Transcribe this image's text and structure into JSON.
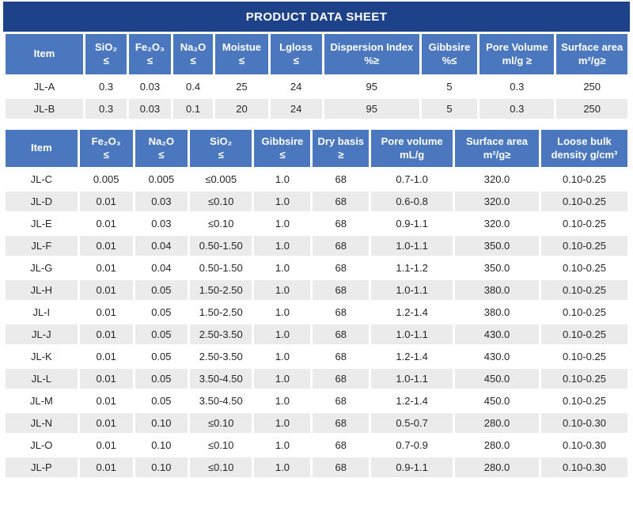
{
  "page_title": "PRODUCT DATA SHEET",
  "colors": {
    "title_bar_bg": "#1E4289",
    "header_bg": "#4B77BE",
    "header_text": "#FFFFFF",
    "row_bg": "#FFFFFF",
    "row_alt_bg": "#EBEBEB",
    "body_text": "#262626",
    "page_bg": "#FFFFFF"
  },
  "tables": [
    {
      "id": "spec-table-1",
      "headers": [
        [
          "Item",
          ""
        ],
        [
          "SiO₂",
          "≤"
        ],
        [
          "Fe₂O₃",
          "≤"
        ],
        [
          "Na₂O",
          "≤"
        ],
        [
          "Moistue",
          "≤"
        ],
        [
          "Lgloss",
          "≤"
        ],
        [
          "Dispersion Index",
          "%≥"
        ],
        [
          "Gibbsire",
          "%≤"
        ],
        [
          "Pore Volume",
          "ml/g ≥"
        ],
        [
          "Surface area",
          "m²/g≥"
        ]
      ],
      "rows": [
        [
          "JL-A",
          "0.3",
          "0.03",
          "0.4",
          "25",
          "24",
          "95",
          "5",
          "0.3",
          "250"
        ],
        [
          "JL-B",
          "0.3",
          "0.03",
          "0.1",
          "20",
          "24",
          "95",
          "5",
          "0.3",
          "250"
        ]
      ]
    },
    {
      "id": "spec-table-2",
      "headers": [
        [
          "Item",
          ""
        ],
        [
          "Fe₂O₃",
          "≤"
        ],
        [
          "Na₂O",
          "≤"
        ],
        [
          "SiO₂",
          "≤"
        ],
        [
          "Gibbsire",
          "≤"
        ],
        [
          "Dry basis",
          "≥"
        ],
        [
          "Pore volume",
          "mL/g"
        ],
        [
          "Surface area",
          "m²/g≥"
        ],
        [
          "Loose bulk",
          "density g/cm³"
        ]
      ],
      "rows": [
        [
          "JL-C",
          "0.005",
          "0.005",
          "≤0.005",
          "1.0",
          "68",
          "0.7-1.0",
          "320.0",
          "0.10-0.25"
        ],
        [
          "JL-D",
          "0.01",
          "0.03",
          "≤0.10",
          "1.0",
          "68",
          "0.6-0.8",
          "320.0",
          "0.10-0.25"
        ],
        [
          "JL-E",
          "0.01",
          "0.03",
          "≤0.10",
          "1.0",
          "68",
          "0.9-1.1",
          "320.0",
          "0.10-0.25"
        ],
        [
          "JL-F",
          "0.01",
          "0.04",
          "0.50-1.50",
          "1.0",
          "68",
          "1.0-1.1",
          "350.0",
          "0.10-0.25"
        ],
        [
          "JL-G",
          "0.01",
          "0.04",
          "0.50-1.50",
          "1.0",
          "68",
          "1.1-1.2",
          "350.0",
          "0.10-0.25"
        ],
        [
          "JL-H",
          "0.01",
          "0.05",
          "1.50-2.50",
          "1.0",
          "68",
          "1.0-1.1",
          "380.0",
          "0.10-0.25"
        ],
        [
          "JL-I",
          "0.01",
          "0.05",
          "1.50-2.50",
          "1.0",
          "68",
          "1.2-1.4",
          "380.0",
          "0.10-0.25"
        ],
        [
          "JL-J",
          "0.01",
          "0.05",
          "2.50-3.50",
          "1.0",
          "68",
          "1.0-1.1",
          "430.0",
          "0.10-0.25"
        ],
        [
          "JL-K",
          "0.01",
          "0.05",
          "2.50-3.50",
          "1.0",
          "68",
          "1.2-1.4",
          "430.0",
          "0.10-0.25"
        ],
        [
          "JL-L",
          "0.01",
          "0.05",
          "3.50-4.50",
          "1.0",
          "68",
          "1.0-1.1",
          "450.0",
          "0.10-0.25"
        ],
        [
          "JL-M",
          "0.01",
          "0.05",
          "3.50-4.50",
          "1.0",
          "68",
          "1.2-1.4",
          "450.0",
          "0.10-0.25"
        ],
        [
          "JL-N",
          "0.01",
          "0.10",
          "≤0.10",
          "1.0",
          "68",
          "0.5-0.7",
          "280.0",
          "0.10-0.30"
        ],
        [
          "JL-O",
          "0.01",
          "0.10",
          "≤0.10",
          "1.0",
          "68",
          "0.7-0.9",
          "280.0",
          "0.10-0.30"
        ],
        [
          "JL-P",
          "0.01",
          "0.10",
          "≤0.10",
          "1.0",
          "68",
          "0.9-1.1",
          "280.0",
          "0.10-0.30"
        ]
      ]
    }
  ]
}
